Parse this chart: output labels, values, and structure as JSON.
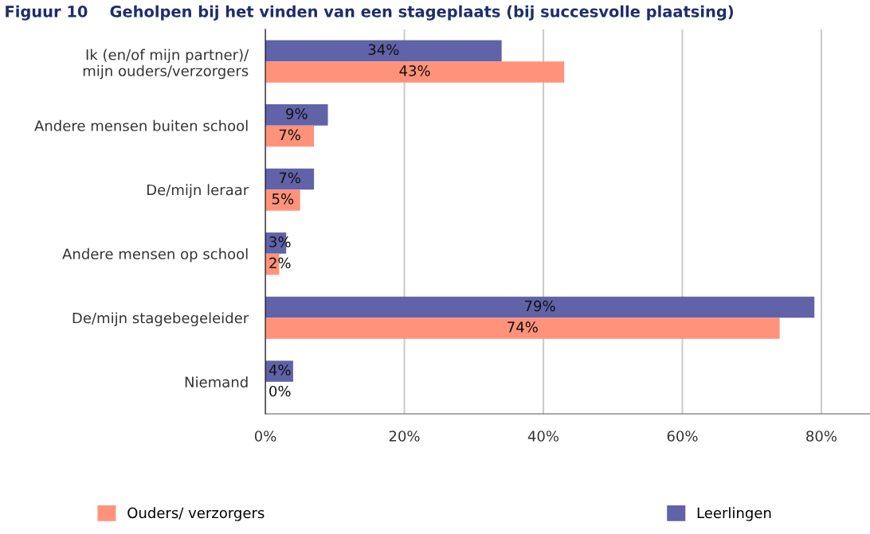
{
  "chart_data": {
    "type": "bar",
    "orientation": "horizontal",
    "title": "Figuur 10    Geholpen bij het vinden van een stageplaats (bij succesvolle plaatsing)",
    "categories": [
      "Ik (en/of mijn partner)/\nmijn ouders/verzorgers",
      "Andere mensen buiten school",
      "De/mijn leraar",
      "Andere mensen op school",
      "De/mijn stagebegeleider",
      "Niemand"
    ],
    "series": [
      {
        "name": "Leerlingen",
        "color": "#6063a8",
        "values": [
          34,
          9,
          7,
          3,
          79,
          4
        ],
        "value_labels": [
          "34%",
          "9%",
          "7%",
          "3%",
          "79%",
          "4%"
        ]
      },
      {
        "name": "Ouders/ verzorgers",
        "color": "#ff927a",
        "values": [
          43,
          7,
          5,
          2,
          74,
          0
        ],
        "value_labels": [
          "43%",
          "7%",
          "5%",
          "2%",
          "74%",
          "0%"
        ]
      }
    ],
    "xlim": [
      0,
      87
    ],
    "xticks": [
      {
        "value": 0,
        "label": "0%"
      },
      {
        "value": 20,
        "label": "20%"
      },
      {
        "value": 40,
        "label": "40%"
      },
      {
        "value": 60,
        "label": "60%"
      },
      {
        "value": 80,
        "label": "80%"
      }
    ],
    "grid": "x",
    "legend": "bottom"
  }
}
